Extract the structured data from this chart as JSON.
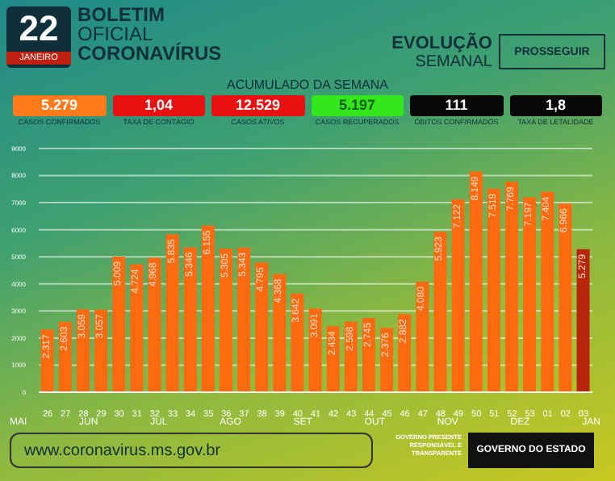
{
  "chart_data": {
    "type": "bar",
    "title": "BOLETIM OFICIAL CORONAVÍRUS",
    "subtitle": "EVOLUÇÃO SEMANAL",
    "categories": [
      "26",
      "27",
      "28",
      "29",
      "30",
      "31",
      "32",
      "33",
      "34",
      "35",
      "36",
      "37",
      "38",
      "39",
      "40",
      "41",
      "42",
      "43",
      "44",
      "45",
      "46",
      "47",
      "48",
      "49",
      "50",
      "51",
      "52",
      "53",
      "01",
      "02",
      "03"
    ],
    "values": [
      2317,
      2603,
      3059,
      3057,
      5009,
      4724,
      4968,
      5835,
      5346,
      6155,
      5305,
      5343,
      4795,
      4368,
      3642,
      3091,
      2434,
      2598,
      2745,
      2376,
      2882,
      4080,
      5923,
      7122,
      8149,
      7519,
      7769,
      7197,
      7404,
      6966,
      5279
    ],
    "value_labels": [
      "2.317",
      "2.603",
      "3.059",
      "3.057",
      "5.009",
      "4.724",
      "4.968",
      "5.835",
      "5.346",
      "6.155",
      "5.305",
      "5.343",
      "4.795",
      "4.368",
      "3.642",
      "3.091",
      "2.434",
      "2.598",
      "2.745",
      "2.376",
      "2.882",
      "4.080",
      "5.923",
      "7.122",
      "8.149",
      "7.519",
      "7.769",
      "7.197",
      "7.404",
      "6.966",
      "5.279"
    ],
    "colors": [
      "#ff6a10",
      "#ff6a10",
      "#ff6a10",
      "#ff6a10",
      "#ff6a10",
      "#ff6a10",
      "#ff6a10",
      "#ff6a10",
      "#ff6a10",
      "#ff6a10",
      "#ff6a10",
      "#ff6a10",
      "#ff6a10",
      "#ff6a10",
      "#ff6a10",
      "#ff6a10",
      "#ff6a10",
      "#ff6a10",
      "#ff6a10",
      "#ff6a10",
      "#ff6a10",
      "#ff6a10",
      "#ff6a10",
      "#ff6a10",
      "#ff6a10",
      "#ff6a10",
      "#ff6a10",
      "#ff6a10",
      "#ff6a10",
      "#ff6a10",
      "#b8240c"
    ],
    "ylim": [
      0,
      9000
    ],
    "yticks": [
      0,
      1000,
      2000,
      3000,
      4000,
      5000,
      6000,
      7000,
      8000,
      9000
    ],
    "grid": "y",
    "annotations": [
      "22",
      "JANEIRO",
      "ACUMULADO DA SEMANA",
      "5.279",
      "CASOS CONFIRMADOS",
      "1,04",
      "TAXA DE CONTÁGIO",
      "12.529",
      "CASOS ATIVOS",
      "5.197",
      "CASOS RECUPERADOS",
      "111",
      "ÓBITOS CONFIRMADOS",
      "1,8",
      "TAXA DE LETALIDADE",
      "PROSSEGUIR",
      "www.coronavirus.ms.gov.br",
      "GOVERNO PRESENTE RESPONSÁVEL E TRANSPARENTE",
      "GOVERNO DO ESTADO",
      "MAI",
      "JUN",
      "JUL",
      "AGO",
      "SET",
      "OUT",
      "NOV",
      "DEZ",
      "JAN"
    ]
  }
}
